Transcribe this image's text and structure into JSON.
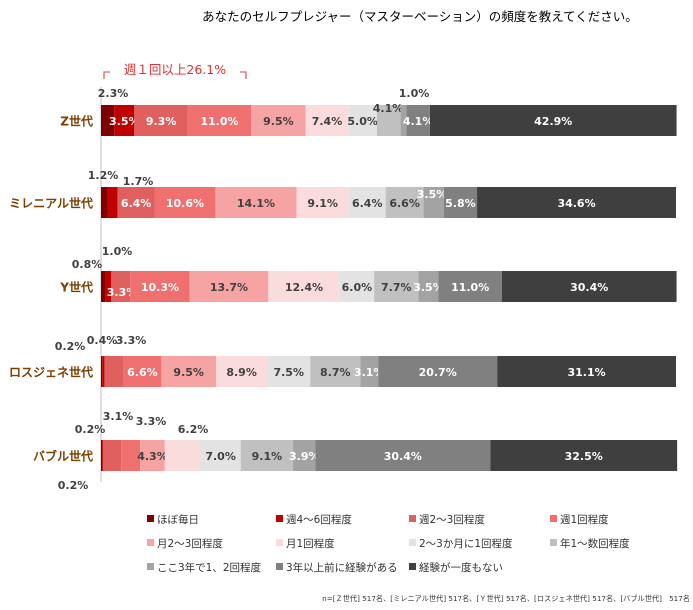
{
  "chart_data": {
    "type": "bar",
    "orientation": "horizontal",
    "stacked": true,
    "percent_stacked": true,
    "title": "あなたのセルフプレジャー（マスターベーション）の頻度を教えてください。",
    "bracket_label": "週１回以上26.1%",
    "categories": [
      "Z世代",
      "ミレニアル世代",
      "Y世代",
      "ロスジェネ世代",
      "バブル世代"
    ],
    "series": [
      {
        "name": "ほぼ毎日",
        "color": "#7f0000",
        "values": [
          2.3,
          1.2,
          0.8,
          0.2,
          0.2
        ]
      },
      {
        "name": "週4～6回程度",
        "color": "#c00000",
        "values": [
          3.5,
          1.7,
          1.0,
          0.4,
          0.2
        ]
      },
      {
        "name": "週2～3回程度",
        "color": "#e06060",
        "values": [
          9.3,
          6.4,
          3.3,
          3.3,
          3.1
        ]
      },
      {
        "name": "週1回程度",
        "color": "#f07070",
        "values": [
          11.0,
          10.6,
          10.3,
          6.6,
          3.3
        ]
      },
      {
        "name": "月2～3回程度",
        "color": "#f5a3a3",
        "values": [
          9.5,
          14.1,
          13.7,
          9.5,
          4.3
        ]
      },
      {
        "name": "月1回程度",
        "color": "#fadcdc",
        "values": [
          7.4,
          9.1,
          12.4,
          8.9,
          6.2
        ]
      },
      {
        "name": "2～3か月に1回程度",
        "color": "#e3e3e3",
        "values": [
          5.0,
          6.4,
          6.0,
          7.5,
          7.0
        ]
      },
      {
        "name": "年1～数回程度",
        "color": "#c0c0c0",
        "values": [
          4.1,
          6.6,
          7.7,
          8.7,
          9.1
        ]
      },
      {
        "name": "ここ3年で1、2回程度",
        "color": "#a3a3a3",
        "values": [
          1.0,
          3.5,
          3.5,
          3.1,
          3.9
        ]
      },
      {
        "name": "3年以上前に経験がある",
        "color": "#808080",
        "values": [
          4.1,
          5.8,
          11.0,
          20.7,
          30.4
        ]
      },
      {
        "name": "経験が一度もない",
        "color": "#3f3f3f",
        "values": [
          42.9,
          34.6,
          30.4,
          31.1,
          32.5
        ]
      }
    ],
    "value_labels": [
      [
        "2.3%",
        "3.5%",
        "9.3%",
        "11.0%",
        "9.5%",
        "7.4%",
        "5.0%",
        "4.1%",
        "1.0%",
        "4.1%",
        "42.9%"
      ],
      [
        "1.2%",
        "1.7%",
        "6.4%",
        "10.6%",
        "14.1%",
        "9.1%",
        "6.4%",
        "6.6%",
        "3.5%",
        "5.8%",
        "34.6%"
      ],
      [
        "0.8%",
        "1.0%",
        "3.3%",
        "10.3%",
        "13.7%",
        "12.4%",
        "6.0%",
        "7.7%",
        "3.5%",
        "11.0%",
        "30.4%"
      ],
      [
        "0.2%",
        "0.4%",
        "3.3%",
        "6.6%",
        "9.5%",
        "8.9%",
        "7.5%",
        "8.7%",
        "3.1%",
        "20.7%",
        "31.1%"
      ],
      [
        "0.2%",
        "0.2%",
        "3.1%",
        "3.3%",
        "4.3%",
        "6.2%",
        "7.0%",
        "9.1%",
        "3.9%",
        "30.4%",
        "32.5%"
      ]
    ],
    "xlim": [
      0,
      100
    ],
    "legend_position": "bottom",
    "grid": false,
    "footnote": "n=[Ｚ世代] 517名、[ミレニアル世代] 517名、[Ｙ世代] 517名、[ロスジェネ世代] 517名、[バブル世代]　517名"
  }
}
